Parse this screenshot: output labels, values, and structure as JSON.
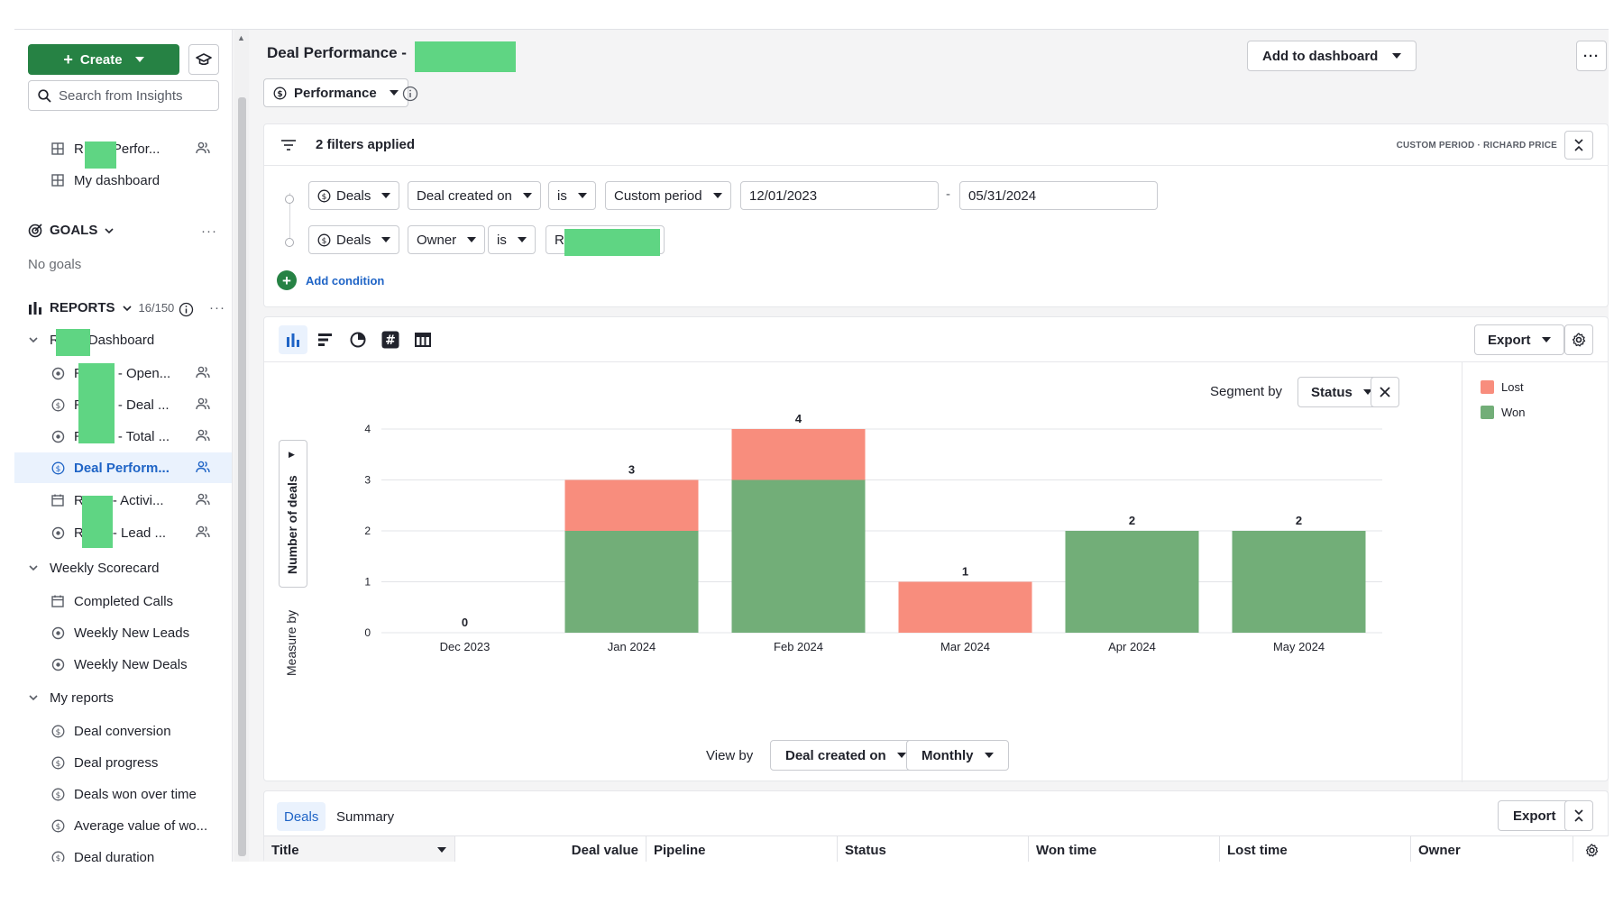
{
  "sidebar": {
    "create_label": "Create",
    "search_placeholder": "Search from Insights",
    "dashboards": [
      {
        "label": "R",
        "label_tail": "Perfor...",
        "icon": "dashboard-icon"
      },
      {
        "label": "My dashboard",
        "icon": "dashboard-icon"
      }
    ],
    "goals": {
      "title": "GOALS",
      "empty": "No goals"
    },
    "reports": {
      "title": "REPORTS",
      "count": "16/150",
      "folders": [
        {
          "label": "R",
          "label_tail": "Dashboard",
          "items": [
            {
              "label": "R",
              "tail": "- Open...",
              "icon": "target-icon"
            },
            {
              "label": "R",
              "tail": "- Deal ...",
              "icon": "dollar-icon"
            },
            {
              "label": "R",
              "tail": "- Total ...",
              "icon": "target-icon"
            },
            {
              "label": "Deal Perform...",
              "icon": "dollar-icon"
            },
            {
              "label": "R",
              "tail": "- Activi...",
              "icon": "calendar-icon"
            },
            {
              "label": "R",
              "tail": "- Lead ...",
              "icon": "target-icon"
            }
          ]
        },
        {
          "label": "Weekly Scorecard",
          "items": [
            {
              "label": "Completed Calls",
              "icon": "calendar-icon"
            },
            {
              "label": "Weekly New Leads",
              "icon": "target-icon"
            },
            {
              "label": "Weekly New Deals",
              "icon": "target-icon"
            }
          ]
        },
        {
          "label": "My reports",
          "items": [
            {
              "label": "Deal conversion",
              "icon": "dollar-icon"
            },
            {
              "label": "Deal progress",
              "icon": "dollar-icon"
            },
            {
              "label": "Deals won over time",
              "icon": "dollar-icon"
            },
            {
              "label": "Average value of wo...",
              "icon": "dollar-icon"
            },
            {
              "label": "Deal duration",
              "icon": "dollar-icon"
            }
          ]
        }
      ]
    }
  },
  "header": {
    "title": "Deal Performance -",
    "report_type": "Performance",
    "add_to_dashboard": "Add to dashboard",
    "more": "···"
  },
  "filters": {
    "summary": "2 filters applied",
    "context": "CUSTOM PERIOD · RICHARD PRICE",
    "rows": [
      {
        "entity": "Deals",
        "field": "Deal created on",
        "operator": "is",
        "period": "Custom period",
        "from": "12/01/2023",
        "separator": "-",
        "to": "05/31/2024"
      },
      {
        "entity": "Deals",
        "field": "Owner",
        "operator": "is",
        "value": "Ri"
      }
    ],
    "add_condition": "Add condition"
  },
  "chart_toolbar": {
    "export": "Export",
    "segment_label": "Segment by",
    "segment_value": "Status",
    "measure_label": "Measure by",
    "measure_value": "Number of deals",
    "view_label": "View by",
    "view_value": "Deal created on",
    "interval": "Monthly"
  },
  "chart_data": {
    "type": "bar",
    "stacked": true,
    "categories": [
      "Dec 2023",
      "Jan 2024",
      "Feb 2024",
      "Mar 2024",
      "Apr 2024",
      "May 2024"
    ],
    "series": [
      {
        "name": "Won",
        "color": "#72ae78",
        "values": [
          0,
          2,
          3,
          0,
          2,
          2
        ]
      },
      {
        "name": "Lost",
        "color": "#f88d7d",
        "values": [
          0,
          1,
          1,
          1,
          0,
          0
        ]
      }
    ],
    "totals": [
      0,
      3,
      4,
      1,
      2,
      2
    ],
    "yticks": [
      0,
      1,
      2,
      3,
      4
    ],
    "ylim": [
      0,
      4
    ],
    "ylabel": "Number of deals",
    "grid": true,
    "legend": "right"
  },
  "legend": [
    {
      "label": "Lost",
      "color": "#f88d7d"
    },
    {
      "label": "Won",
      "color": "#72ae78"
    }
  ],
  "table": {
    "tabs": [
      "Deals",
      "Summary"
    ],
    "export": "Export",
    "columns": [
      "Title",
      "Deal value",
      "Pipeline",
      "Status",
      "Won time",
      "Lost time",
      "Owner"
    ]
  }
}
